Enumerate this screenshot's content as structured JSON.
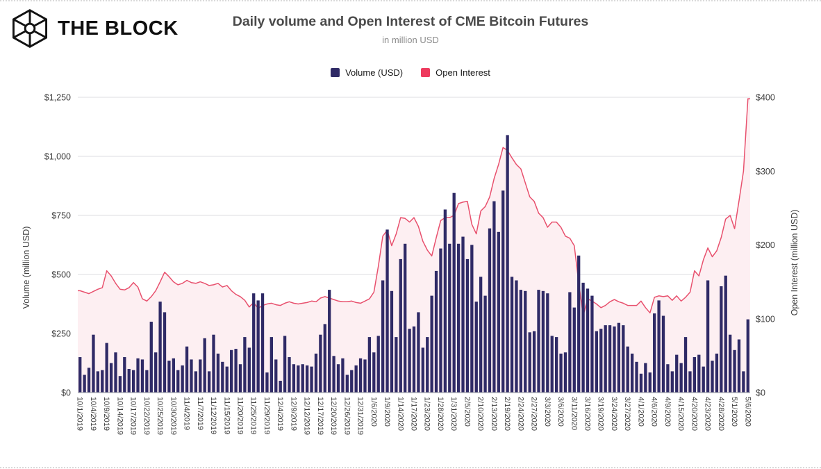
{
  "header": {
    "brand": "THE BLOCK",
    "title": "Daily volume and Open Interest of CME Bitcoin Futures",
    "subtitle": "in million USD"
  },
  "legend": [
    {
      "label": "Volume (USD)",
      "color": "#2f2a66"
    },
    {
      "label": "Open Interest",
      "color": "#ee3a5e"
    }
  ],
  "chart_data": {
    "type": "bar+line",
    "title": "Daily volume and Open Interest of CME Bitcoin Futures",
    "subtitle": "in million USD",
    "grid": true,
    "legend_position": "top-center",
    "colors": {
      "grid": "#dcdce2",
      "axis": "#9da0ab"
    },
    "left_axis": {
      "title": "Volume (million USD)",
      "ticks": [
        "$0",
        "$250",
        "$500",
        "$750",
        "$1,000",
        "$1,250"
      ],
      "tick_values": [
        0,
        250,
        500,
        750,
        1000,
        1250
      ],
      "max": 1250
    },
    "right_axis": {
      "title": "Open Interest (million USD)",
      "ticks": [
        "$0",
        "$100",
        "$200",
        "$300",
        "$400"
      ],
      "tick_values": [
        0,
        100,
        200,
        300,
        400
      ],
      "max": 400
    },
    "x_label_every": 3,
    "x": [
      "10/1/2019",
      "10/2/2019",
      "10/3/2019",
      "10/4/2019",
      "10/7/2019",
      "10/8/2019",
      "10/9/2019",
      "10/10/2019",
      "10/11/2019",
      "10/14/2019",
      "10/15/2019",
      "10/16/2019",
      "10/17/2019",
      "10/18/2019",
      "10/21/2019",
      "10/22/2019",
      "10/23/2019",
      "10/24/2019",
      "10/25/2019",
      "10/28/2019",
      "10/29/2019",
      "10/30/2019",
      "10/31/2019",
      "11/1/2019",
      "11/4/2019",
      "11/5/2019",
      "11/6/2019",
      "11/7/2019",
      "11/8/2019",
      "11/11/2019",
      "11/12/2019",
      "11/13/2019",
      "11/14/2019",
      "11/15/2019",
      "11/18/2019",
      "11/19/2019",
      "11/20/2019",
      "11/21/2019",
      "11/22/2019",
      "11/25/2019",
      "11/26/2019",
      "11/27/2019",
      "11/29/2019",
      "12/2/2019",
      "12/3/2019",
      "12/4/2019",
      "12/5/2019",
      "12/6/2019",
      "12/9/2019",
      "12/10/2019",
      "12/11/2019",
      "12/12/2019",
      "12/13/2019",
      "12/16/2019",
      "12/17/2019",
      "12/18/2019",
      "12/19/2019",
      "12/20/2019",
      "12/23/2019",
      "12/24/2019",
      "12/26/2019",
      "12/27/2019",
      "12/30/2019",
      "12/31/2019",
      "1/2/2020",
      "1/3/2020",
      "1/6/2020",
      "1/7/2020",
      "1/8/2020",
      "1/9/2020",
      "1/10/2020",
      "1/13/2020",
      "1/14/2020",
      "1/15/2020",
      "1/16/2020",
      "1/17/2020",
      "1/21/2020",
      "1/22/2020",
      "1/23/2020",
      "1/24/2020",
      "1/27/2020",
      "1/28/2020",
      "1/29/2020",
      "1/30/2020",
      "1/31/2020",
      "2/3/2020",
      "2/4/2020",
      "2/5/2020",
      "2/6/2020",
      "2/7/2020",
      "2/10/2020",
      "2/11/2020",
      "2/12/2020",
      "2/13/2020",
      "2/14/2020",
      "2/18/2020",
      "2/19/2020",
      "2/20/2020",
      "2/21/2020",
      "2/24/2020",
      "2/25/2020",
      "2/26/2020",
      "2/27/2020",
      "2/28/2020",
      "3/2/2020",
      "3/3/2020",
      "3/4/2020",
      "3/5/2020",
      "3/6/2020",
      "3/9/2020",
      "3/10/2020",
      "3/11/2020",
      "3/12/2020",
      "3/13/2020",
      "3/16/2020",
      "3/17/2020",
      "3/18/2020",
      "3/19/2020",
      "3/20/2020",
      "3/23/2020",
      "3/24/2020",
      "3/25/2020",
      "3/26/2020",
      "3/27/2020",
      "3/30/2020",
      "3/31/2020",
      "4/1/2020",
      "4/2/2020",
      "4/3/2020",
      "4/6/2020",
      "4/7/2020",
      "4/8/2020",
      "4/9/2020",
      "4/13/2020",
      "4/14/2020",
      "4/15/2020",
      "4/16/2020",
      "4/17/2020",
      "4/20/2020",
      "4/21/2020",
      "4/22/2020",
      "4/23/2020",
      "4/24/2020",
      "4/27/2020",
      "4/28/2020",
      "4/29/2020",
      "4/30/2020",
      "5/1/2020",
      "5/4/2020",
      "5/5/2020",
      "5/6/2020"
    ],
    "series": [
      {
        "name": "Volume (USD)",
        "type": "bar",
        "axis": "left",
        "color": "#2f2a66",
        "values": [
          150,
          75,
          105,
          245,
          90,
          95,
          210,
          125,
          170,
          70,
          150,
          100,
          95,
          145,
          140,
          95,
          300,
          170,
          385,
          340,
          135,
          145,
          95,
          115,
          195,
          140,
          90,
          140,
          230,
          90,
          245,
          165,
          130,
          110,
          180,
          185,
          120,
          235,
          190,
          420,
          390,
          420,
          85,
          235,
          140,
          50,
          240,
          150,
          120,
          115,
          120,
          115,
          110,
          165,
          245,
          290,
          435,
          155,
          120,
          145,
          75,
          95,
          115,
          145,
          140,
          235,
          170,
          240,
          475,
          690,
          430,
          235,
          565,
          630,
          270,
          280,
          340,
          190,
          235,
          410,
          515,
          610,
          775,
          630,
          845,
          630,
          660,
          565,
          625,
          385,
          490,
          410,
          695,
          810,
          680,
          855,
          1090,
          490,
          475,
          435,
          430,
          255,
          260,
          435,
          430,
          420,
          240,
          235,
          165,
          170,
          425,
          360,
          580,
          465,
          440,
          410,
          260,
          270,
          285,
          285,
          280,
          295,
          285,
          195,
          165,
          130,
          80,
          125,
          85,
          335,
          390,
          325,
          120,
          90,
          160,
          125,
          235,
          90,
          150,
          160,
          110,
          475,
          135,
          165,
          450,
          495,
          245,
          180,
          225,
          90,
          310
        ]
      },
      {
        "name": "Open Interest",
        "type": "line+area",
        "axis": "right",
        "color": "#e8516e",
        "fill": "#fdeff2",
        "values": [
          138,
          136,
          134,
          137,
          140,
          142,
          165,
          158,
          148,
          140,
          139,
          142,
          149,
          143,
          127,
          124,
          130,
          138,
          150,
          163,
          157,
          150,
          146,
          148,
          152,
          149,
          148,
          150,
          148,
          145,
          146,
          148,
          143,
          145,
          138,
          133,
          130,
          125,
          116,
          122,
          114,
          118,
          120,
          121,
          119,
          118,
          121,
          123,
          121,
          120,
          121,
          122,
          124,
          123,
          128,
          130,
          128,
          126,
          124,
          123,
          123,
          124,
          122,
          121,
          124,
          127,
          136,
          171,
          212,
          220,
          199,
          215,
          237,
          236,
          231,
          237,
          225,
          205,
          193,
          185,
          210,
          233,
          237,
          237,
          240,
          256,
          258,
          259,
          228,
          215,
          246,
          252,
          265,
          290,
          309,
          332,
          328,
          318,
          309,
          303,
          284,
          265,
          259,
          243,
          237,
          224,
          231,
          231,
          224,
          212,
          209,
          199,
          149,
          104,
          127,
          124,
          120,
          115,
          118,
          123,
          126,
          123,
          121,
          118,
          118,
          118,
          124,
          115,
          108,
          129,
          131,
          130,
          131,
          125,
          131,
          124,
          129,
          136,
          165,
          158,
          180,
          196,
          184,
          192,
          210,
          235,
          240,
          222,
          260,
          300,
          398
        ]
      }
    ]
  }
}
